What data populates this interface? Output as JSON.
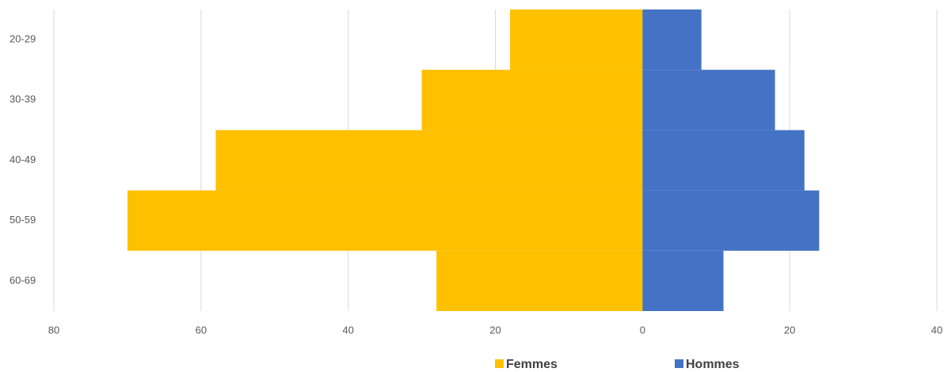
{
  "chart_data": {
    "type": "pyramid",
    "categories": [
      "20-29",
      "30-39",
      "40-49",
      "50-59",
      "60-69"
    ],
    "series": [
      {
        "name": "Femmes",
        "color": "#ffc000",
        "values": [
          -18,
          -30,
          -58,
          -70,
          -28
        ]
      },
      {
        "name": "Hommes",
        "color": "#4472c4",
        "values": [
          8,
          18,
          22,
          24,
          11
        ]
      }
    ],
    "xlim": [
      -80,
      40
    ],
    "xticks": [
      {
        "value": -80,
        "label": "80"
      },
      {
        "value": -60,
        "label": "60"
      },
      {
        "value": -40,
        "label": "40"
      },
      {
        "value": -20,
        "label": "20"
      },
      0,
      20,
      40
    ],
    "grid": true,
    "legend": "bottom"
  }
}
